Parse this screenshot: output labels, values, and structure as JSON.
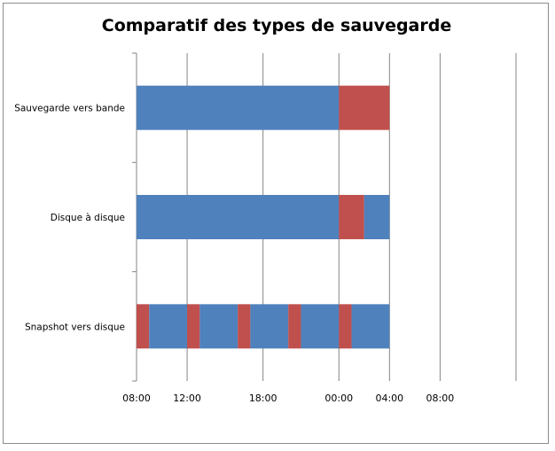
{
  "chart_data": {
    "type": "bar",
    "orientation": "horizontal",
    "stacked": true,
    "title": "Comparatif des types de sauvegarde",
    "xlabel": "",
    "ylabel": "",
    "x_unit": "hours",
    "xlim": [
      0,
      30
    ],
    "x_ticks": [
      0,
      4,
      10,
      16,
      20,
      24
    ],
    "x_tick_labels": [
      "08:00",
      "12:00",
      "18:00",
      "00:00",
      "04:00",
      "08:00"
    ],
    "grid": "vertical",
    "legend": "none",
    "categories": [
      "Sauvegarde vers bande",
      "Disque à disque",
      "Snapshot vers disque"
    ],
    "colors": {
      "primary": "#4f81bd",
      "secondary": "#c0504d"
    },
    "rows": [
      {
        "segments": [
          {
            "start": 0,
            "end": 16,
            "color": "primary"
          },
          {
            "start": 16,
            "end": 20,
            "color": "secondary"
          }
        ]
      },
      {
        "segments": [
          {
            "start": 0,
            "end": 16,
            "color": "primary"
          },
          {
            "start": 16,
            "end": 18,
            "color": "secondary"
          },
          {
            "start": 18,
            "end": 20,
            "color": "primary"
          }
        ]
      },
      {
        "segments": [
          {
            "start": 0,
            "end": 1,
            "color": "secondary"
          },
          {
            "start": 1,
            "end": 4,
            "color": "primary"
          },
          {
            "start": 4,
            "end": 5,
            "color": "secondary"
          },
          {
            "start": 5,
            "end": 8,
            "color": "primary"
          },
          {
            "start": 8,
            "end": 9,
            "color": "secondary"
          },
          {
            "start": 9,
            "end": 12,
            "color": "primary"
          },
          {
            "start": 12,
            "end": 13,
            "color": "secondary"
          },
          {
            "start": 13,
            "end": 16,
            "color": "primary"
          },
          {
            "start": 16,
            "end": 17,
            "color": "secondary"
          },
          {
            "start": 17,
            "end": 20,
            "color": "primary"
          }
        ]
      }
    ]
  }
}
